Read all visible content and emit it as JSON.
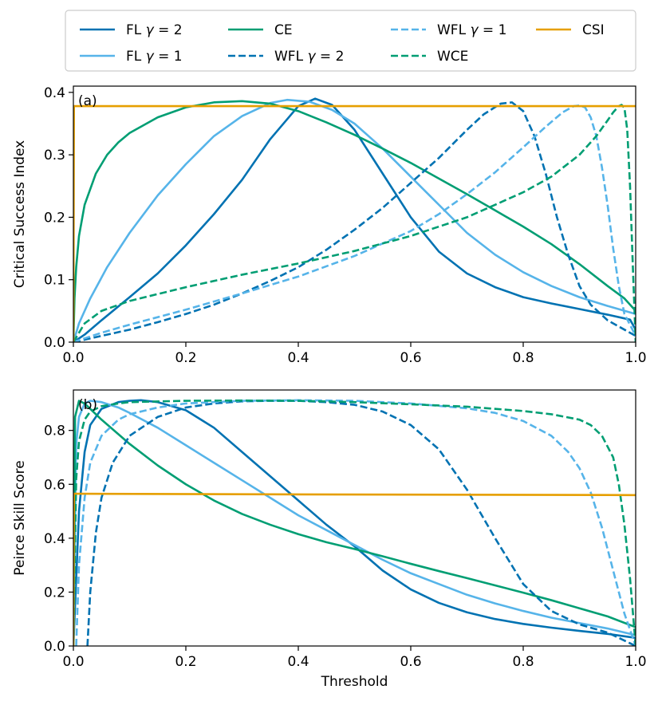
{
  "colors": {
    "dark_blue": "#0072B2",
    "light_blue": "#56B4E9",
    "green": "#009E73",
    "orange": "#E69F00"
  },
  "legend": {
    "items": [
      {
        "name": "FL γ = 2",
        "prefix": "FL ",
        "gamma": "γ",
        "suffix": " = 2",
        "color": "#0072B2",
        "dash": "solid"
      },
      {
        "name": "FL γ = 1",
        "prefix": "FL ",
        "gamma": "γ",
        "suffix": " = 1",
        "color": "#56B4E9",
        "dash": "solid"
      },
      {
        "name": "CE",
        "prefix": "CE",
        "gamma": "",
        "suffix": "",
        "color": "#009E73",
        "dash": "solid"
      },
      {
        "name": "WFL γ = 2",
        "prefix": "WFL ",
        "gamma": "γ",
        "suffix": " = 2",
        "color": "#0072B2",
        "dash": "dashed"
      },
      {
        "name": "WFL γ = 1",
        "prefix": "WFL ",
        "gamma": "γ",
        "suffix": " = 1",
        "color": "#56B4E9",
        "dash": "dashed"
      },
      {
        "name": "WCE",
        "prefix": "WCE",
        "gamma": "",
        "suffix": "",
        "color": "#009E73",
        "dash": "dashed"
      },
      {
        "name": "CSI",
        "prefix": "CSI",
        "gamma": "",
        "suffix": "",
        "color": "#E69F00",
        "dash": "solid"
      }
    ]
  },
  "chart_data": [
    {
      "type": "line",
      "panel": "(a)",
      "xlabel": "",
      "ylabel": "Critical Success Index",
      "xlim": [
        0.0,
        1.0
      ],
      "ylim": [
        0.0,
        0.41
      ],
      "xticks": [
        0.0,
        0.2,
        0.4,
        0.6,
        0.8,
        1.0
      ],
      "xtick_labels": [
        "0.0",
        "0.2",
        "0.4",
        "0.6",
        "0.8",
        "1.0"
      ],
      "yticks": [
        0.0,
        0.1,
        0.2,
        0.3,
        0.4
      ],
      "ytick_labels": [
        "0.0",
        "0.1",
        "0.2",
        "0.3",
        "0.4"
      ],
      "series": [
        {
          "name": "FL γ = 2",
          "color": "#0072B2",
          "dash": "solid",
          "x": [
            0.0,
            0.02,
            0.05,
            0.1,
            0.15,
            0.2,
            0.25,
            0.3,
            0.35,
            0.4,
            0.43,
            0.46,
            0.5,
            0.55,
            0.6,
            0.65,
            0.7,
            0.75,
            0.8,
            0.85,
            0.9,
            0.95,
            0.99,
            1.0
          ],
          "y": [
            0.0,
            0.012,
            0.035,
            0.072,
            0.11,
            0.155,
            0.205,
            0.26,
            0.325,
            0.378,
            0.39,
            0.38,
            0.34,
            0.27,
            0.2,
            0.145,
            0.11,
            0.088,
            0.072,
            0.062,
            0.053,
            0.044,
            0.036,
            0.02
          ]
        },
        {
          "name": "FL γ = 1",
          "color": "#56B4E9",
          "dash": "solid",
          "x": [
            0.0,
            0.01,
            0.03,
            0.06,
            0.1,
            0.15,
            0.2,
            0.25,
            0.3,
            0.35,
            0.38,
            0.42,
            0.46,
            0.5,
            0.55,
            0.6,
            0.65,
            0.7,
            0.75,
            0.8,
            0.85,
            0.9,
            0.95,
            1.0
          ],
          "y": [
            0.0,
            0.03,
            0.07,
            0.12,
            0.175,
            0.235,
            0.285,
            0.33,
            0.362,
            0.383,
            0.388,
            0.385,
            0.372,
            0.35,
            0.31,
            0.265,
            0.22,
            0.175,
            0.14,
            0.112,
            0.09,
            0.072,
            0.058,
            0.045
          ]
        },
        {
          "name": "CE",
          "color": "#009E73",
          "dash": "solid",
          "x": [
            0.0,
            0.002,
            0.005,
            0.01,
            0.02,
            0.04,
            0.06,
            0.08,
            0.1,
            0.15,
            0.2,
            0.25,
            0.3,
            0.35,
            0.4,
            0.45,
            0.5,
            0.55,
            0.6,
            0.65,
            0.7,
            0.75,
            0.8,
            0.85,
            0.9,
            0.95,
            0.98,
            1.0
          ],
          "y": [
            0.0,
            0.07,
            0.12,
            0.17,
            0.22,
            0.27,
            0.3,
            0.32,
            0.335,
            0.36,
            0.376,
            0.384,
            0.386,
            0.382,
            0.37,
            0.352,
            0.332,
            0.31,
            0.287,
            0.262,
            0.237,
            0.211,
            0.185,
            0.157,
            0.125,
            0.09,
            0.07,
            0.05
          ]
        },
        {
          "name": "WFL γ = 2",
          "color": "#0072B2",
          "dash": "dashed",
          "x": [
            0.0,
            0.05,
            0.1,
            0.15,
            0.2,
            0.25,
            0.3,
            0.35,
            0.4,
            0.45,
            0.5,
            0.55,
            0.6,
            0.65,
            0.7,
            0.73,
            0.76,
            0.78,
            0.8,
            0.82,
            0.84,
            0.86,
            0.88,
            0.9,
            0.92,
            0.95,
            1.0
          ],
          "y": [
            0.0,
            0.01,
            0.02,
            0.032,
            0.045,
            0.06,
            0.078,
            0.098,
            0.12,
            0.148,
            0.18,
            0.215,
            0.255,
            0.295,
            0.34,
            0.365,
            0.382,
            0.384,
            0.37,
            0.33,
            0.27,
            0.2,
            0.14,
            0.09,
            0.06,
            0.035,
            0.01
          ]
        },
        {
          "name": "WFL γ = 1",
          "color": "#56B4E9",
          "dash": "dashed",
          "x": [
            0.0,
            0.05,
            0.1,
            0.2,
            0.3,
            0.4,
            0.5,
            0.6,
            0.65,
            0.7,
            0.75,
            0.8,
            0.84,
            0.87,
            0.89,
            0.9,
            0.91,
            0.92,
            0.93,
            0.94,
            0.95,
            0.96,
            0.97,
            0.98,
            1.0
          ],
          "y": [
            0.0,
            0.015,
            0.028,
            0.052,
            0.078,
            0.105,
            0.138,
            0.178,
            0.205,
            0.237,
            0.272,
            0.312,
            0.345,
            0.368,
            0.378,
            0.379,
            0.376,
            0.36,
            0.33,
            0.28,
            0.22,
            0.15,
            0.09,
            0.045,
            0.01
          ]
        },
        {
          "name": "WCE",
          "color": "#009E73",
          "dash": "dashed",
          "x": [
            0.0,
            0.02,
            0.05,
            0.1,
            0.2,
            0.3,
            0.4,
            0.5,
            0.6,
            0.7,
            0.8,
            0.85,
            0.9,
            0.93,
            0.95,
            0.96,
            0.97,
            0.975,
            0.98,
            0.985,
            0.99,
            0.995,
            1.0
          ],
          "y": [
            0.0,
            0.03,
            0.05,
            0.066,
            0.088,
            0.108,
            0.126,
            0.146,
            0.17,
            0.2,
            0.24,
            0.265,
            0.3,
            0.33,
            0.355,
            0.368,
            0.378,
            0.38,
            0.375,
            0.34,
            0.25,
            0.12,
            0.0
          ]
        },
        {
          "name": "CSI",
          "color": "#E69F00",
          "dash": "solid",
          "x": [
            0.0,
            0.001,
            0.005,
            0.5,
            1.0
          ],
          "y": [
            0.0,
            0.378,
            0.378,
            0.378,
            0.378
          ]
        }
      ]
    },
    {
      "type": "line",
      "panel": "(b)",
      "xlabel": "Threshold",
      "ylabel": "Peirce Skill Score",
      "xlim": [
        0.0,
        1.0
      ],
      "ylim": [
        0.0,
        0.95
      ],
      "xticks": [
        0.0,
        0.2,
        0.4,
        0.6,
        0.8,
        1.0
      ],
      "xtick_labels": [
        "0.0",
        "0.2",
        "0.4",
        "0.6",
        "0.8",
        "1.0"
      ],
      "yticks": [
        0.0,
        0.2,
        0.4,
        0.6,
        0.8
      ],
      "ytick_labels": [
        "0.0",
        "0.2",
        "0.4",
        "0.6",
        "0.8"
      ],
      "series": [
        {
          "name": "FL γ = 2",
          "color": "#0072B2",
          "dash": "solid",
          "x": [
            0.0,
            0.01,
            0.02,
            0.03,
            0.05,
            0.08,
            0.1,
            0.12,
            0.15,
            0.2,
            0.25,
            0.3,
            0.35,
            0.4,
            0.45,
            0.5,
            0.55,
            0.6,
            0.65,
            0.7,
            0.75,
            0.8,
            0.85,
            0.9,
            0.95,
            1.0
          ],
          "y": [
            0.0,
            0.5,
            0.72,
            0.82,
            0.88,
            0.905,
            0.91,
            0.912,
            0.905,
            0.875,
            0.81,
            0.72,
            0.63,
            0.54,
            0.45,
            0.37,
            0.28,
            0.21,
            0.16,
            0.125,
            0.1,
            0.082,
            0.068,
            0.056,
            0.045,
            0.03
          ]
        },
        {
          "name": "FL γ = 1",
          "color": "#56B4E9",
          "dash": "solid",
          "x": [
            0.0,
            0.005,
            0.01,
            0.02,
            0.03,
            0.05,
            0.08,
            0.1,
            0.15,
            0.2,
            0.25,
            0.3,
            0.35,
            0.4,
            0.45,
            0.5,
            0.55,
            0.6,
            0.65,
            0.7,
            0.75,
            0.8,
            0.85,
            0.9,
            0.95,
            1.0
          ],
          "y": [
            0.0,
            0.75,
            0.85,
            0.9,
            0.91,
            0.905,
            0.885,
            0.865,
            0.81,
            0.745,
            0.68,
            0.615,
            0.55,
            0.485,
            0.43,
            0.375,
            0.32,
            0.27,
            0.23,
            0.19,
            0.158,
            0.13,
            0.105,
            0.085,
            0.065,
            0.04
          ]
        },
        {
          "name": "CE",
          "color": "#009E73",
          "dash": "solid",
          "x": [
            0.0,
            0.003,
            0.01,
            0.02,
            0.05,
            0.1,
            0.15,
            0.2,
            0.25,
            0.3,
            0.35,
            0.4,
            0.45,
            0.5,
            0.55,
            0.6,
            0.65,
            0.7,
            0.75,
            0.8,
            0.85,
            0.9,
            0.95,
            1.0
          ],
          "y": [
            0.0,
            0.85,
            0.91,
            0.9,
            0.84,
            0.75,
            0.67,
            0.6,
            0.54,
            0.49,
            0.45,
            0.415,
            0.385,
            0.36,
            0.333,
            0.305,
            0.278,
            0.252,
            0.225,
            0.198,
            0.17,
            0.14,
            0.11,
            0.07
          ]
        },
        {
          "name": "WFL γ = 2",
          "color": "#0072B2",
          "dash": "dashed",
          "x": [
            0.025,
            0.03,
            0.04,
            0.05,
            0.07,
            0.1,
            0.15,
            0.2,
            0.25,
            0.3,
            0.35,
            0.4,
            0.45,
            0.5,
            0.55,
            0.6,
            0.65,
            0.7,
            0.75,
            0.8,
            0.85,
            0.9,
            0.95,
            1.0
          ],
          "y": [
            0.0,
            0.2,
            0.42,
            0.55,
            0.68,
            0.78,
            0.85,
            0.885,
            0.9,
            0.908,
            0.91,
            0.91,
            0.905,
            0.895,
            0.87,
            0.82,
            0.73,
            0.58,
            0.4,
            0.23,
            0.13,
            0.08,
            0.05,
            0.0
          ]
        },
        {
          "name": "WFL γ = 1",
          "color": "#56B4E9",
          "dash": "dashed",
          "x": [
            0.005,
            0.01,
            0.02,
            0.03,
            0.05,
            0.08,
            0.1,
            0.15,
            0.2,
            0.3,
            0.4,
            0.5,
            0.6,
            0.7,
            0.75,
            0.8,
            0.85,
            0.88,
            0.9,
            0.92,
            0.94,
            0.96,
            0.98,
            1.0
          ],
          "y": [
            0.0,
            0.3,
            0.55,
            0.68,
            0.78,
            0.84,
            0.86,
            0.885,
            0.9,
            0.91,
            0.912,
            0.91,
            0.9,
            0.882,
            0.865,
            0.835,
            0.78,
            0.72,
            0.66,
            0.57,
            0.44,
            0.28,
            0.12,
            0.0
          ]
        },
        {
          "name": "WCE",
          "color": "#009E73",
          "dash": "dashed",
          "x": [
            0.0,
            0.005,
            0.01,
            0.02,
            0.03,
            0.05,
            0.08,
            0.1,
            0.2,
            0.3,
            0.4,
            0.5,
            0.6,
            0.7,
            0.8,
            0.85,
            0.9,
            0.92,
            0.94,
            0.96,
            0.97,
            0.98,
            0.99,
            1.0
          ],
          "y": [
            0.0,
            0.62,
            0.76,
            0.84,
            0.87,
            0.89,
            0.9,
            0.905,
            0.91,
            0.911,
            0.91,
            0.905,
            0.897,
            0.888,
            0.872,
            0.86,
            0.84,
            0.82,
            0.78,
            0.7,
            0.6,
            0.45,
            0.25,
            0.0
          ]
        },
        {
          "name": "CSI",
          "color": "#E69F00",
          "dash": "solid",
          "x": [
            0.0,
            0.001,
            0.005,
            0.5,
            1.0
          ],
          "y": [
            0.0,
            0.565,
            0.565,
            0.562,
            0.56
          ]
        }
      ]
    }
  ]
}
